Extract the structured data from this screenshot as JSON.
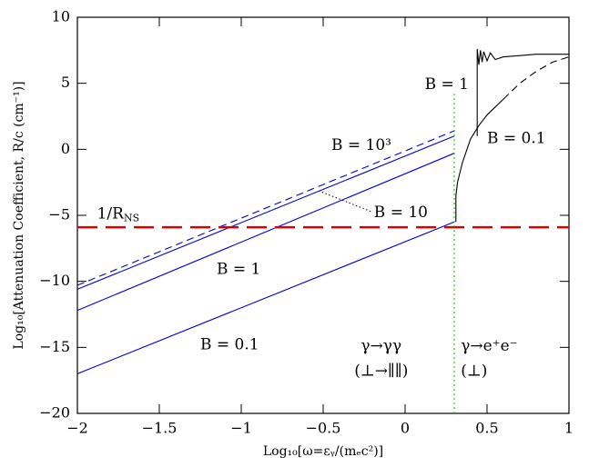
{
  "chart_data": {
    "type": "line",
    "ylabel": "Log₁₀[Attenuation Coefficient, R/c (cm⁻¹)]",
    "xlabel": "Log₁₀[ω=εᵧ/(mₑc²)]",
    "xlim": [
      -2,
      1
    ],
    "ylim": [
      -20,
      10
    ],
    "xticks": [
      {
        "value": -2,
        "label": "−2"
      },
      {
        "value": -1.5,
        "label": "−1.5"
      },
      {
        "value": -1,
        "label": "−1"
      },
      {
        "value": -0.5,
        "label": "−0.5"
      },
      0,
      0.5,
      1
    ],
    "yticks": [
      {
        "value": -20,
        "label": "−20"
      },
      {
        "value": -15,
        "label": "−15"
      },
      {
        "value": -10,
        "label": "−10"
      },
      {
        "value": -5,
        "label": "−5"
      },
      0,
      5,
      10
    ],
    "series": [
      {
        "color": "#0000cc",
        "dash": "solid",
        "x": [
          -2,
          0.3
        ],
        "values": [
          -17,
          -5.5
        ]
      },
      {
        "color": "#0000cc",
        "dash": "solid",
        "x": [
          -2,
          0.3
        ],
        "values": [
          -12.2,
          -0.3
        ]
      },
      {
        "color": "#0000cc",
        "dash": "solid",
        "x": [
          -2,
          0.3
        ],
        "values": [
          -10.6,
          1.0
        ]
      },
      {
        "color": "#0000cc",
        "dash": "dashed",
        "x": [
          -2,
          0.3
        ],
        "values": [
          -10.3,
          1.4
        ]
      },
      {
        "color": "#000000",
        "dash": "solid",
        "x": [
          0.31,
          0.31,
          0.32,
          0.35,
          0.4,
          0.45,
          0.5,
          0.55,
          0.6
        ],
        "values": [
          -5.5,
          -3.5,
          -2.5,
          -1,
          0.8,
          1.8,
          2.6,
          3.2,
          3.8
        ]
      },
      {
        "color": "#000000",
        "dash": "dashed",
        "x": [
          0.6,
          0.7,
          0.8,
          0.9,
          1.0
        ],
        "values": [
          3.8,
          5.0,
          5.9,
          6.6,
          7.0
        ]
      },
      {
        "color": "#000000",
        "dash": "solid",
        "x": [
          0.44,
          0.44,
          0.45,
          0.46,
          0.47,
          0.48,
          0.5,
          0.52,
          0.55,
          0.6,
          0.7,
          0.8,
          0.9,
          1.0
        ],
        "values": [
          1,
          7.6,
          6.4,
          7.5,
          6.6,
          7.4,
          6.7,
          7.3,
          6.8,
          7.0,
          7.1,
          7.2,
          7.2,
          7.2
        ]
      },
      {
        "color": "#dd0000",
        "dash": "longdash",
        "x": [
          -2,
          1
        ],
        "values": [
          -5.9,
          -5.9
        ]
      },
      {
        "color": "#00cc00",
        "dash": "dotted",
        "x": [
          0.3,
          0.3
        ],
        "values": [
          -20,
          4.2
        ]
      }
    ],
    "annotations": [
      {
        "text": "B = 1",
        "x": 0.12,
        "y": 4.9
      },
      {
        "text": "B = 0.1",
        "x": 0.5,
        "y": 0.8
      },
      {
        "text": "B = 10³",
        "x": -0.45,
        "y": 0.3
      },
      {
        "text": "B = 10",
        "x": -0.19,
        "y": -4.8
      },
      {
        "text": "B = 1",
        "x": -1.15,
        "y": -9.1
      },
      {
        "text": "B = 0.1",
        "x": -1.25,
        "y": -14.8
      },
      {
        "text": "1/R",
        "sub": "NS",
        "x": -1.88,
        "y": -4.9
      },
      {
        "text": "γ→γγ",
        "x": -0.27,
        "y": -14.9
      },
      {
        "text": "(⊥→∥∥)",
        "x": -0.31,
        "y": -16.8
      },
      {
        "text": "γ→e⁺e⁻",
        "x": 0.34,
        "y": -14.9
      },
      {
        "text": "(⊥)",
        "x": 0.34,
        "y": -16.8
      }
    ]
  }
}
